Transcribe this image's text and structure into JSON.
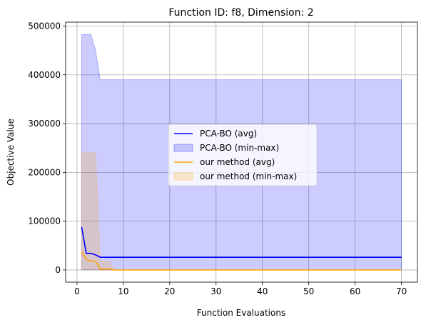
{
  "chart_data": {
    "type": "line",
    "title": "Function ID: f8, Dimension: 2",
    "xlabel": "Function Evaluations",
    "ylabel": "Objective Value",
    "xlim": [
      -2.45,
      73.45
    ],
    "ylim": [
      -25000,
      508000
    ],
    "xticks": [
      0,
      10,
      20,
      30,
      40,
      50,
      60,
      70
    ],
    "yticks": [
      0,
      100000,
      200000,
      300000,
      400000,
      500000
    ],
    "grid": true,
    "legend_position": "center",
    "series": [
      {
        "name": "PCA-BO (avg)",
        "kind": "line",
        "color": "#0000ff",
        "x": [
          1,
          2,
          3,
          4,
          5,
          6,
          70
        ],
        "y": [
          88000,
          34000,
          34000,
          31000,
          26000,
          26000,
          26000
        ]
      },
      {
        "name": "PCA-BO (min-max)",
        "kind": "band",
        "color": "#0000ff",
        "x": [
          1,
          2,
          3,
          4,
          5,
          6,
          70
        ],
        "upper": [
          483000,
          483000,
          483000,
          450000,
          390000,
          390000,
          390000
        ],
        "lower": [
          0,
          0,
          0,
          0,
          0,
          0,
          0
        ]
      },
      {
        "name": "our method (avg)",
        "kind": "line",
        "color": "#ffa500",
        "x": [
          1,
          2,
          3,
          4,
          5,
          6,
          7,
          8,
          70
        ],
        "y": [
          38000,
          22000,
          18000,
          18000,
          2000,
          2000,
          2000,
          0,
          0
        ]
      },
      {
        "name": "our method (min-max)",
        "kind": "band",
        "color": "#ffa500",
        "x": [
          1,
          2,
          3,
          4,
          5,
          6,
          7,
          8,
          70
        ],
        "upper": [
          240000,
          240000,
          240000,
          240000,
          18000,
          18000,
          18000,
          0,
          0
        ],
        "lower": [
          0,
          0,
          0,
          0,
          0,
          0,
          0,
          0,
          0
        ]
      }
    ]
  }
}
